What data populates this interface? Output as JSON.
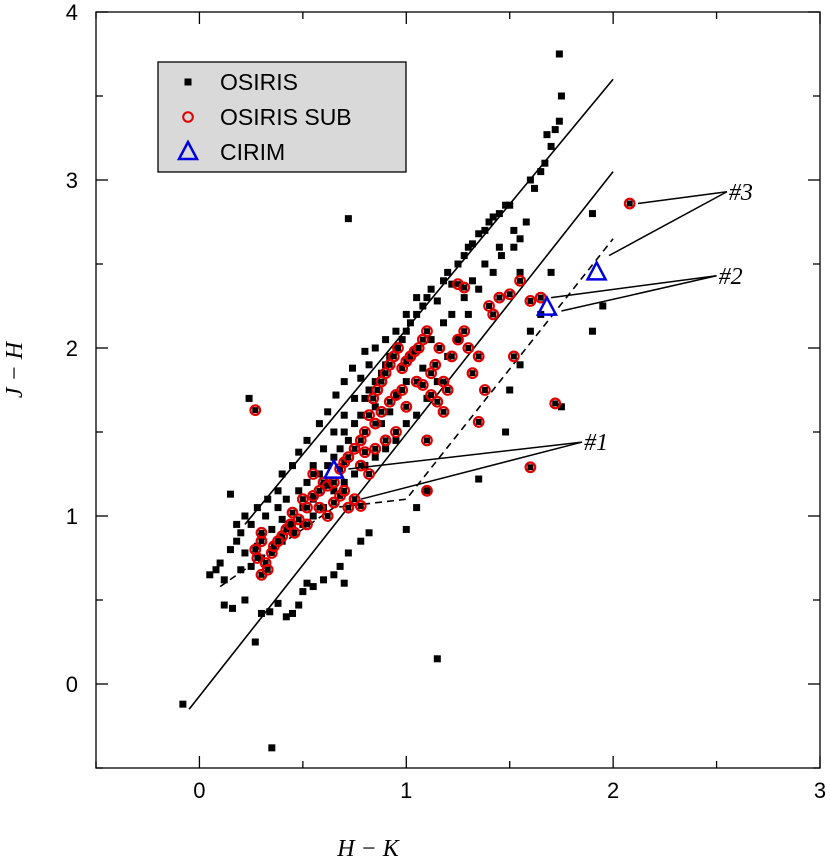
{
  "chart_data": {
    "type": "scatter",
    "title": "",
    "xlabel": "H − K",
    "ylabel": "J − H",
    "xlim": [
      -0.5,
      3.0
    ],
    "ylim": [
      -0.5,
      4.0
    ],
    "x_ticks": [
      0,
      1,
      2,
      3
    ],
    "y_ticks": [
      0,
      1,
      2,
      3,
      4
    ],
    "grid": false,
    "legend_position": "top-left",
    "colors": {
      "osiris": "#000000",
      "osiris_sub": "#e00000",
      "cirim": "#0000dd"
    },
    "series": [
      {
        "name": "OSIRIS",
        "marker": "filled-square",
        "points": [
          [
            -0.08,
            -0.12
          ],
          [
            0.35,
            -0.38
          ],
          [
            1.15,
            0.15
          ],
          [
            0.27,
            0.25
          ],
          [
            0.05,
            0.65
          ],
          [
            0.08,
            0.68
          ],
          [
            0.1,
            0.72
          ],
          [
            0.12,
            0.62
          ],
          [
            0.15,
            0.8
          ],
          [
            0.18,
            0.85
          ],
          [
            0.2,
            0.9
          ],
          [
            0.22,
            0.78
          ],
          [
            0.25,
            0.95
          ],
          [
            0.28,
            0.82
          ],
          [
            0.3,
            0.88
          ],
          [
            0.32,
            1.0
          ],
          [
            0.35,
            0.92
          ],
          [
            0.38,
            1.05
          ],
          [
            0.4,
            0.98
          ],
          [
            0.42,
            1.1
          ],
          [
            0.45,
            0.95
          ],
          [
            0.48,
            1.15
          ],
          [
            0.5,
            1.05
          ],
          [
            0.52,
            1.2
          ],
          [
            0.55,
            1.1
          ],
          [
            0.58,
            1.25
          ],
          [
            0.6,
            1.18
          ],
          [
            0.62,
            1.3
          ],
          [
            0.65,
            1.35
          ],
          [
            0.68,
            1.4
          ],
          [
            0.7,
            1.5
          ],
          [
            0.72,
            1.45
          ],
          [
            0.75,
            1.55
          ],
          [
            0.78,
            1.6
          ],
          [
            0.8,
            1.7
          ],
          [
            0.82,
            1.75
          ],
          [
            0.85,
            1.8
          ],
          [
            0.88,
            1.85
          ],
          [
            0.9,
            1.9
          ],
          [
            0.92,
            1.95
          ],
          [
            0.95,
            2.0
          ],
          [
            0.98,
            2.05
          ],
          [
            1.0,
            2.1
          ],
          [
            1.02,
            2.15
          ],
          [
            1.05,
            2.2
          ],
          [
            1.08,
            2.25
          ],
          [
            1.1,
            2.3
          ],
          [
            1.12,
            2.35
          ],
          [
            1.15,
            2.28
          ],
          [
            1.18,
            2.4
          ],
          [
            1.2,
            2.45
          ],
          [
            1.22,
            2.38
          ],
          [
            1.25,
            2.5
          ],
          [
            1.28,
            2.55
          ],
          [
            1.3,
            2.6
          ],
          [
            1.32,
            2.62
          ],
          [
            1.35,
            2.68
          ],
          [
            1.38,
            2.7
          ],
          [
            1.4,
            2.75
          ],
          [
            1.42,
            2.78
          ],
          [
            1.45,
            2.8
          ],
          [
            1.48,
            2.85
          ],
          [
            1.5,
            2.85
          ],
          [
            1.52,
            2.7
          ],
          [
            1.55,
            2.65
          ],
          [
            1.58,
            2.75
          ],
          [
            1.6,
            3.0
          ],
          [
            1.62,
            2.95
          ],
          [
            1.65,
            3.05
          ],
          [
            1.67,
            3.1
          ],
          [
            1.7,
            3.2
          ],
          [
            1.72,
            3.3
          ],
          [
            1.74,
            3.35
          ],
          [
            1.75,
            3.5
          ],
          [
            1.74,
            3.75
          ],
          [
            1.68,
            3.27
          ],
          [
            0.72,
            2.77
          ],
          [
            0.24,
            1.7
          ],
          [
            0.15,
            1.13
          ],
          [
            0.12,
            0.47
          ],
          [
            0.16,
            0.45
          ],
          [
            0.22,
            0.5
          ],
          [
            0.3,
            0.42
          ],
          [
            0.34,
            0.43
          ],
          [
            0.38,
            0.48
          ],
          [
            0.42,
            0.4
          ],
          [
            0.45,
            0.42
          ],
          [
            0.48,
            0.47
          ],
          [
            0.5,
            0.55
          ],
          [
            0.52,
            0.6
          ],
          [
            0.55,
            0.58
          ],
          [
            0.6,
            0.62
          ],
          [
            0.65,
            0.65
          ],
          [
            0.68,
            0.7
          ],
          [
            0.7,
            0.6
          ],
          [
            0.72,
            0.78
          ],
          [
            0.78,
            0.85
          ],
          [
            0.82,
            0.9
          ],
          [
            1.0,
            0.92
          ],
          [
            1.05,
            1.05
          ],
          [
            1.1,
            1.15
          ],
          [
            1.35,
            1.22
          ],
          [
            1.48,
            1.5
          ],
          [
            1.5,
            1.75
          ],
          [
            1.55,
            1.9
          ],
          [
            1.6,
            2.1
          ],
          [
            1.65,
            2.2
          ],
          [
            1.7,
            2.45
          ],
          [
            1.75,
            1.65
          ],
          [
            1.9,
            2.1
          ],
          [
            1.95,
            2.25
          ],
          [
            1.9,
            2.8
          ],
          [
            1.55,
            2.45
          ],
          [
            1.45,
            2.6
          ],
          [
            1.35,
            2.35
          ],
          [
            1.3,
            2.2
          ],
          [
            1.25,
            2.05
          ],
          [
            1.2,
            1.95
          ],
          [
            1.15,
            1.8
          ],
          [
            1.1,
            1.7
          ],
          [
            1.05,
            1.6
          ],
          [
            1.0,
            1.55
          ],
          [
            0.95,
            1.45
          ],
          [
            0.9,
            1.4
          ],
          [
            0.85,
            1.35
          ],
          [
            0.8,
            1.3
          ],
          [
            0.75,
            1.25
          ],
          [
            0.7,
            1.2
          ],
          [
            0.65,
            1.15
          ],
          [
            0.6,
            1.05
          ],
          [
            0.55,
            1.0
          ],
          [
            0.5,
            0.95
          ],
          [
            0.45,
            0.9
          ],
          [
            0.4,
            0.85
          ],
          [
            0.35,
            0.8
          ],
          [
            0.3,
            0.75
          ],
          [
            0.25,
            0.7
          ],
          [
            0.2,
            0.68
          ],
          [
            0.55,
            1.3
          ],
          [
            0.6,
            1.4
          ],
          [
            0.65,
            1.5
          ],
          [
            0.7,
            1.6
          ],
          [
            0.75,
            1.7
          ],
          [
            0.78,
            1.82
          ],
          [
            0.82,
            1.9
          ],
          [
            0.85,
            2.0
          ],
          [
            0.9,
            2.05
          ],
          [
            0.95,
            2.1
          ],
          [
            1.0,
            2.2
          ],
          [
            1.05,
            2.3
          ],
          [
            1.08,
            1.88
          ],
          [
            1.12,
            2.05
          ],
          [
            1.18,
            2.15
          ],
          [
            1.22,
            2.2
          ],
          [
            1.28,
            2.3
          ],
          [
            1.32,
            2.4
          ],
          [
            1.38,
            2.5
          ],
          [
            1.42,
            2.45
          ],
          [
            1.46,
            2.55
          ],
          [
            1.52,
            2.6
          ],
          [
            0.4,
            1.25
          ],
          [
            0.45,
            1.3
          ],
          [
            0.48,
            1.38
          ],
          [
            0.52,
            1.45
          ],
          [
            0.38,
            1.15
          ],
          [
            0.33,
            1.1
          ],
          [
            0.28,
            1.05
          ],
          [
            0.22,
            1.0
          ],
          [
            0.18,
            0.95
          ],
          [
            0.58,
            1.55
          ],
          [
            0.62,
            1.62
          ],
          [
            0.66,
            1.72
          ],
          [
            0.7,
            1.8
          ],
          [
            0.74,
            1.88
          ],
          [
            0.8,
            1.98
          ],
          [
            0.85,
            1.65
          ],
          [
            0.88,
            1.55
          ],
          [
            0.92,
            1.62
          ],
          [
            0.96,
            1.72
          ],
          [
            1.0,
            1.8
          ]
        ]
      },
      {
        "name": "OSIRIS SUB",
        "marker": "open-circle-on-square",
        "points": [
          [
            0.27,
            1.63
          ],
          [
            0.27,
            0.8
          ],
          [
            0.3,
            0.85
          ],
          [
            0.32,
            0.72
          ],
          [
            0.35,
            0.78
          ],
          [
            0.3,
            0.65
          ],
          [
            0.33,
            0.68
          ],
          [
            0.28,
            0.75
          ],
          [
            0.36,
            0.82
          ],
          [
            0.3,
            0.9
          ],
          [
            0.45,
            1.02
          ],
          [
            0.48,
            0.98
          ],
          [
            0.5,
            1.1
          ],
          [
            0.52,
            1.05
          ],
          [
            0.55,
            1.12
          ],
          [
            0.52,
            0.95
          ],
          [
            0.58,
            1.15
          ],
          [
            0.6,
            1.2
          ],
          [
            0.55,
            1.25
          ],
          [
            0.62,
            1.18
          ],
          [
            0.65,
            1.2
          ],
          [
            0.68,
            1.28
          ],
          [
            0.7,
            1.32
          ],
          [
            0.72,
            1.35
          ],
          [
            0.75,
            1.4
          ],
          [
            0.78,
            1.45
          ],
          [
            0.8,
            1.5
          ],
          [
            0.72,
            1.05
          ],
          [
            0.75,
            1.1
          ],
          [
            0.78,
            1.06
          ],
          [
            0.82,
            1.6
          ],
          [
            0.84,
            1.7
          ],
          [
            0.86,
            1.75
          ],
          [
            0.88,
            1.8
          ],
          [
            0.9,
            1.85
          ],
          [
            0.92,
            1.9
          ],
          [
            0.94,
            1.95
          ],
          [
            0.96,
            2.0
          ],
          [
            0.98,
            1.88
          ],
          [
            1.0,
            1.92
          ],
          [
            1.02,
            1.95
          ],
          [
            1.04,
            1.98
          ],
          [
            1.06,
            2.0
          ],
          [
            1.08,
            2.05
          ],
          [
            1.1,
            2.1
          ],
          [
            1.12,
            1.85
          ],
          [
            1.14,
            1.9
          ],
          [
            1.16,
            2.0
          ],
          [
            1.18,
            1.8
          ],
          [
            1.2,
            1.75
          ],
          [
            1.22,
            1.95
          ],
          [
            1.25,
            2.05
          ],
          [
            1.28,
            2.1
          ],
          [
            1.3,
            2.0
          ],
          [
            1.32,
            1.85
          ],
          [
            1.35,
            1.95
          ],
          [
            1.38,
            1.75
          ],
          [
            1.4,
            2.25
          ],
          [
            1.42,
            2.2
          ],
          [
            1.45,
            2.3
          ],
          [
            1.5,
            2.32
          ],
          [
            1.52,
            1.95
          ],
          [
            1.55,
            2.4
          ],
          [
            1.6,
            2.28
          ],
          [
            1.25,
            2.38
          ],
          [
            1.28,
            2.36
          ],
          [
            0.85,
            1.55
          ],
          [
            0.88,
            1.62
          ],
          [
            0.92,
            1.68
          ],
          [
            0.95,
            1.72
          ],
          [
            0.98,
            1.75
          ],
          [
            1.0,
            1.65
          ],
          [
            0.95,
            1.5
          ],
          [
            0.9,
            1.45
          ],
          [
            0.85,
            1.4
          ],
          [
            0.8,
            1.38
          ],
          [
            0.78,
            1.3
          ],
          [
            0.82,
            1.25
          ],
          [
            1.1,
            1.45
          ],
          [
            1.1,
            1.15
          ],
          [
            1.35,
            1.56
          ],
          [
            1.6,
            1.29
          ],
          [
            1.72,
            1.67
          ],
          [
            1.65,
            2.3
          ],
          [
            2.08,
            2.86
          ],
          [
            0.62,
            1.0
          ],
          [
            0.58,
            1.05
          ],
          [
            0.65,
            1.08
          ],
          [
            0.68,
            1.12
          ],
          [
            0.7,
            1.15
          ],
          [
            0.4,
            0.88
          ],
          [
            0.42,
            0.92
          ],
          [
            0.38,
            0.85
          ],
          [
            0.44,
            0.95
          ],
          [
            0.46,
            0.9
          ],
          [
            1.05,
            1.8
          ],
          [
            1.08,
            1.78
          ],
          [
            1.12,
            1.72
          ],
          [
            1.15,
            1.68
          ],
          [
            1.18,
            1.62
          ]
        ]
      },
      {
        "name": "CIRIM",
        "marker": "open-triangle",
        "points": [
          [
            0.65,
            1.27
          ],
          [
            1.68,
            2.24
          ],
          [
            1.92,
            2.45
          ]
        ]
      }
    ],
    "lines": [
      {
        "style": "solid",
        "points": [
          [
            -0.05,
            -0.15
          ],
          [
            2.0,
            3.05
          ]
        ]
      },
      {
        "style": "solid",
        "points": [
          [
            0.22,
            0.95
          ],
          [
            2.0,
            3.6
          ]
        ]
      },
      {
        "style": "dashed",
        "points": [
          [
            0.1,
            0.58
          ],
          [
            0.65,
            1.05
          ],
          [
            1.0,
            1.1
          ],
          [
            2.0,
            2.65
          ]
        ]
      }
    ],
    "annotations": [
      {
        "text": "#1",
        "anchor": [
          1.85,
          1.44
        ],
        "targets": [
          [
            0.72,
            1.28
          ],
          [
            0.78,
            1.1
          ]
        ]
      },
      {
        "text": "#2",
        "anchor": [
          2.5,
          2.43
        ],
        "targets": [
          [
            1.7,
            2.3
          ],
          [
            1.75,
            2.22
          ]
        ]
      },
      {
        "text": "#3",
        "anchor": [
          2.55,
          2.93
        ],
        "targets": [
          [
            2.12,
            2.86
          ],
          [
            1.98,
            2.55
          ]
        ]
      }
    ]
  }
}
